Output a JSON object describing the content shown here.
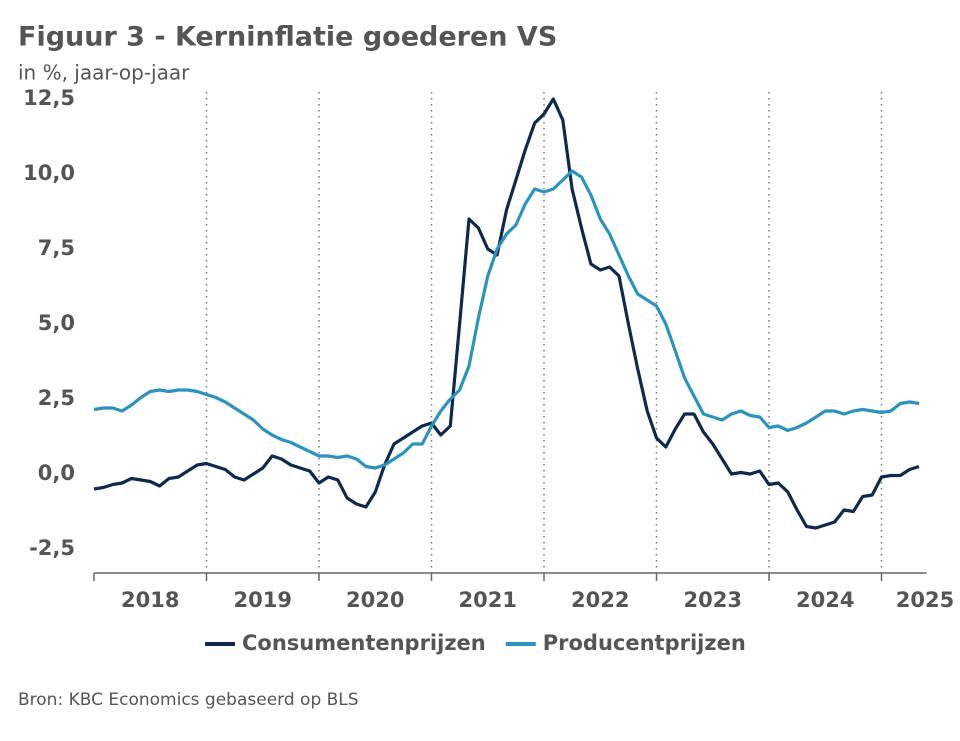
{
  "chart_data": {
    "type": "line",
    "title": "Figuur 3 - Kerninflatie goederen VS",
    "subtitle": "in %, jaar-op-jaar",
    "source": "Bron: KBC Economics gebaseerd op BLS",
    "x": [
      2018,
      2018.083,
      2018.167,
      2018.25,
      2018.333,
      2018.417,
      2018.5,
      2018.583,
      2018.667,
      2018.75,
      2018.833,
      2018.917,
      2019,
      2019.083,
      2019.167,
      2019.25,
      2019.333,
      2019.417,
      2019.5,
      2019.583,
      2019.667,
      2019.75,
      2019.833,
      2019.917,
      2020,
      2020.083,
      2020.167,
      2020.25,
      2020.333,
      2020.417,
      2020.5,
      2020.583,
      2020.667,
      2020.75,
      2020.833,
      2020.917,
      2021,
      2021.083,
      2021.167,
      2021.25,
      2021.333,
      2021.417,
      2021.5,
      2021.583,
      2021.667,
      2021.75,
      2021.833,
      2021.917,
      2022,
      2022.083,
      2022.167,
      2022.25,
      2022.333,
      2022.417,
      2022.5,
      2022.583,
      2022.667,
      2022.75,
      2022.833,
      2022.917,
      2023,
      2023.083,
      2023.167,
      2023.25,
      2023.333,
      2023.417,
      2023.5,
      2023.583,
      2023.667,
      2023.75,
      2023.833,
      2023.917,
      2024,
      2024.083,
      2024.167,
      2024.25,
      2024.333,
      2024.417,
      2024.5,
      2024.583,
      2024.667,
      2024.75,
      2024.833,
      2024.917,
      2025,
      2025.083,
      2025.167,
      2025.25,
      2025.333
    ],
    "series": [
      {
        "name": "Consumentenprijzen",
        "color": "#0d2a4e",
        "values": [
          -0.5,
          -0.45,
          -0.35,
          -0.3,
          -0.15,
          -0.2,
          -0.25,
          -0.4,
          -0.15,
          -0.1,
          0.1,
          0.3,
          0.35,
          0.25,
          0.15,
          -0.1,
          -0.2,
          0.0,
          0.2,
          0.6,
          0.5,
          0.3,
          0.2,
          0.1,
          -0.3,
          -0.1,
          -0.2,
          -0.8,
          -1.0,
          -1.1,
          -0.6,
          0.3,
          1.0,
          1.2,
          1.4,
          1.6,
          1.7,
          1.3,
          1.6,
          5.0,
          8.5,
          8.2,
          7.5,
          7.3,
          8.8,
          9.8,
          10.8,
          11.7,
          12.0,
          12.5,
          11.8,
          9.5,
          8.2,
          7.0,
          6.8,
          6.9,
          6.6,
          5.0,
          3.5,
          2.1,
          1.2,
          0.9,
          1.5,
          2.0,
          2.0,
          1.4,
          1.0,
          0.5,
          0.0,
          0.05,
          0.0,
          0.1,
          -0.35,
          -0.3,
          -0.6,
          -1.2,
          -1.75,
          -1.8,
          -1.7,
          -1.6,
          -1.2,
          -1.25,
          -0.75,
          -0.7,
          -0.1,
          -0.05,
          -0.05,
          0.15,
          0.25
        ]
      },
      {
        "name": "Producentprijzen",
        "color": "#2b93bf",
        "values": [
          2.15,
          2.2,
          2.2,
          2.1,
          2.3,
          2.55,
          2.75,
          2.8,
          2.75,
          2.8,
          2.8,
          2.75,
          2.65,
          2.55,
          2.4,
          2.2,
          2.0,
          1.8,
          1.5,
          1.3,
          1.15,
          1.05,
          0.9,
          0.75,
          0.6,
          0.6,
          0.55,
          0.6,
          0.5,
          0.25,
          0.2,
          0.3,
          0.5,
          0.7,
          1.0,
          1.0,
          1.6,
          2.1,
          2.5,
          2.8,
          3.6,
          5.2,
          6.6,
          7.5,
          8.0,
          8.3,
          9.0,
          9.5,
          9.4,
          9.5,
          9.8,
          10.1,
          9.9,
          9.3,
          8.5,
          8.0,
          7.3,
          6.6,
          6.0,
          5.8,
          5.6,
          5.0,
          4.1,
          3.2,
          2.6,
          2.0,
          1.9,
          1.8,
          2.0,
          2.1,
          1.95,
          1.9,
          1.55,
          1.6,
          1.45,
          1.55,
          1.7,
          1.9,
          2.1,
          2.1,
          2.0,
          2.1,
          2.15,
          2.1,
          2.05,
          2.1,
          2.35,
          2.4,
          2.35
        ]
      }
    ],
    "xlim": [
      2018,
      2025.4
    ],
    "xticks": [
      {
        "value": 2018,
        "label": "2018"
      },
      {
        "value": 2019,
        "label": "2019"
      },
      {
        "value": 2020,
        "label": "2020"
      },
      {
        "value": 2021,
        "label": "2021"
      },
      {
        "value": 2022,
        "label": "2022"
      },
      {
        "value": 2023,
        "label": "2023"
      },
      {
        "value": 2024,
        "label": "2024"
      },
      {
        "value": 2025,
        "label": "2025"
      }
    ],
    "ylim": [
      -3.3,
      12.9
    ],
    "yticks": [
      {
        "value": 12.5,
        "label": "12,5"
      },
      {
        "value": 10,
        "label": "10,0"
      },
      {
        "value": 7.5,
        "label": "7,5"
      },
      {
        "value": 5,
        "label": "5,0"
      },
      {
        "value": 2.5,
        "label": "2,5"
      },
      {
        "value": 0,
        "label": "0,0"
      },
      {
        "value": -2.5,
        "label": "-2,5"
      }
    ],
    "grid": "x"
  }
}
